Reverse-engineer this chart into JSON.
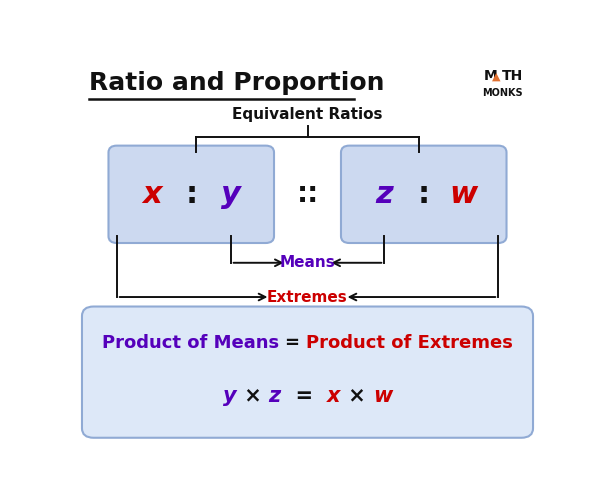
{
  "title": "Ratio and Proportion",
  "title_fontsize": 18,
  "bg_color": "#ffffff",
  "box_color": "#ccd9f0",
  "box_edge_color": "#90aad4",
  "equiv_ratios_label": "Equivalent Ratios",
  "equiv_ratios_color": "#111111",
  "x_color": "#cc0000",
  "y_color": "#5500bb",
  "z_color": "#5500bb",
  "w_color": "#cc0000",
  "means_label": "Means",
  "means_color": "#5500bb",
  "extremes_label": "Extremes",
  "extremes_color": "#cc0000",
  "bottom_box_color": "#dde8f8",
  "bottom_box_edge_color": "#90aad4",
  "product_means_color": "#5500bb",
  "product_extremes_color": "#cc0000",
  "formula_y_color": "#5500bb",
  "formula_x_color": "#cc0000",
  "mathmonks_color": "#111111",
  "mathmonks_triangle_color": "#e07030",
  "line_color": "#111111"
}
